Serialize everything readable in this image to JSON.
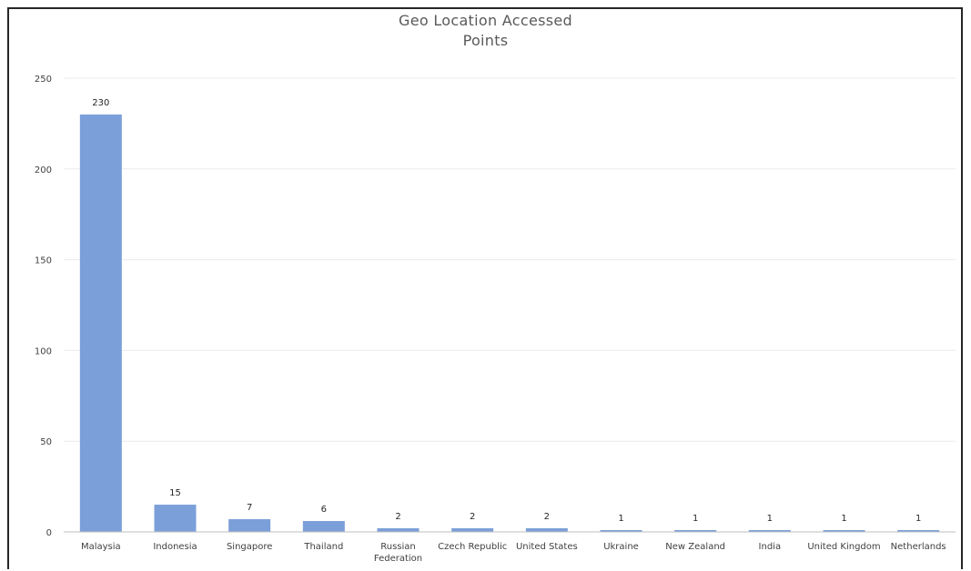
{
  "chart_data": {
    "type": "bar",
    "title_lines": [
      "Geo Location Accessed",
      "Points"
    ],
    "categories": [
      "Malaysia",
      "Indonesia",
      "Singapore",
      "Thailand",
      "Russian Federation",
      "Czech Republic",
      "United States",
      "Ukraine",
      "New Zealand",
      "India",
      "United Kingdom",
      "Netherlands"
    ],
    "category_label_lines": [
      [
        "Malaysia"
      ],
      [
        "Indonesia"
      ],
      [
        "Singapore"
      ],
      [
        "Thailand"
      ],
      [
        "Russian",
        "Federation"
      ],
      [
        "Czech Republic"
      ],
      [
        "United States"
      ],
      [
        "Ukraine"
      ],
      [
        "New Zealand"
      ],
      [
        "India"
      ],
      [
        "United Kingdom"
      ],
      [
        "Netherlands"
      ]
    ],
    "values": [
      230,
      15,
      7,
      6,
      2,
      2,
      2,
      1,
      1,
      1,
      1,
      1
    ],
    "data_labels": [
      "230",
      "15",
      "7",
      "6",
      "2",
      "2",
      "2",
      "1",
      "1",
      "1",
      "1",
      "1"
    ],
    "ylim": [
      0,
      250
    ],
    "yticks": [
      0,
      50,
      100,
      150,
      200,
      250
    ],
    "xlabel": "",
    "ylabel": "",
    "grid": true,
    "legend": "none",
    "colors": {
      "bar": "#7b9fd8",
      "grid": "#ececec",
      "axis": "#bfbfbf"
    }
  }
}
